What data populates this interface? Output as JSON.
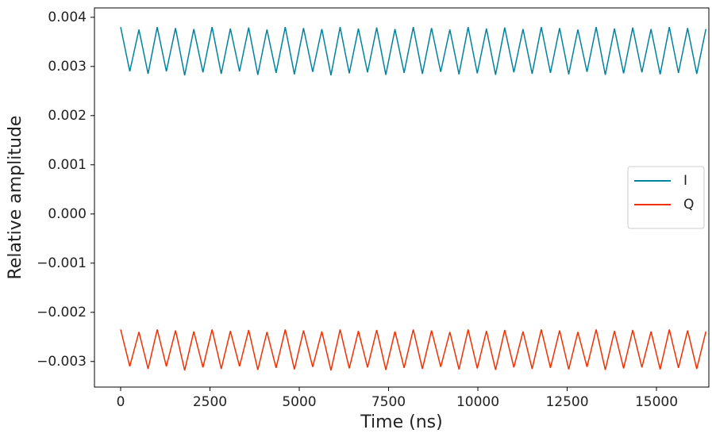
{
  "chart_data": {
    "type": "line",
    "xlabel": "Time (ns)",
    "ylabel": "Relative amplitude",
    "x": [
      0,
      256,
      512,
      768,
      1024,
      1280,
      1536,
      1792,
      2048,
      2304,
      2560,
      2816,
      3072,
      3328,
      3584,
      3840,
      4096,
      4352,
      4608,
      4864,
      5120,
      5376,
      5632,
      5888,
      6144,
      6400,
      6656,
      6912,
      7168,
      7424,
      7680,
      7936,
      8192,
      8448,
      8704,
      8960,
      9216,
      9472,
      9728,
      9984,
      10240,
      10496,
      10752,
      11008,
      11264,
      11520,
      11776,
      12032,
      12288,
      12544,
      12800,
      13056,
      13312,
      13568,
      13824,
      14080,
      14336,
      14592,
      14848,
      15104,
      15360,
      15616,
      15872,
      16128,
      16384
    ],
    "series": [
      {
        "name": "I",
        "color": "#0083a0",
        "values": [
          0.0038,
          0.0029,
          0.00375,
          0.00285,
          0.0038,
          0.0029,
          0.00378,
          0.00282,
          0.00376,
          0.00288,
          0.0038,
          0.00285,
          0.00377,
          0.0029,
          0.00379,
          0.00283,
          0.00375,
          0.00287,
          0.0038,
          0.00284,
          0.00378,
          0.00289,
          0.00376,
          0.00282,
          0.0038,
          0.00286,
          0.00377,
          0.00288,
          0.00379,
          0.00283,
          0.00376,
          0.00287,
          0.0038,
          0.00285,
          0.00378,
          0.00289,
          0.00375,
          0.00284,
          0.0038,
          0.00286,
          0.00377,
          0.00283,
          0.00379,
          0.00288,
          0.00376,
          0.00285,
          0.0038,
          0.00287,
          0.00378,
          0.00284,
          0.00375,
          0.00289,
          0.0038,
          0.00283,
          0.00377,
          0.00286,
          0.00379,
          0.00288,
          0.00376,
          0.00284,
          0.0038,
          0.00287,
          0.00378,
          0.00285,
          0.00376
        ]
      },
      {
        "name": "Q",
        "color": "#f23000",
        "values": [
          -0.00235,
          -0.0031,
          -0.0024,
          -0.00315,
          -0.00235,
          -0.0031,
          -0.00237,
          -0.00318,
          -0.00239,
          -0.00312,
          -0.00235,
          -0.00315,
          -0.00238,
          -0.0031,
          -0.00236,
          -0.00317,
          -0.0024,
          -0.00313,
          -0.00235,
          -0.00316,
          -0.00237,
          -0.00311,
          -0.00239,
          -0.00318,
          -0.00235,
          -0.00314,
          -0.00238,
          -0.00312,
          -0.00236,
          -0.00317,
          -0.00239,
          -0.00313,
          -0.00235,
          -0.00315,
          -0.00237,
          -0.00311,
          -0.0024,
          -0.00316,
          -0.00235,
          -0.00314,
          -0.00238,
          -0.00317,
          -0.00236,
          -0.00312,
          -0.00239,
          -0.00315,
          -0.00235,
          -0.00313,
          -0.00237,
          -0.00316,
          -0.0024,
          -0.00311,
          -0.00235,
          -0.00317,
          -0.00238,
          -0.00314,
          -0.00236,
          -0.00312,
          -0.00239,
          -0.00316,
          -0.00235,
          -0.00313,
          -0.00237,
          -0.00315,
          -0.00239
        ]
      }
    ],
    "xlim": [
      -733,
      16467
    ],
    "xticks": [
      0,
      2500,
      5000,
      7500,
      10000,
      12500,
      15000
    ],
    "ylim": [
      -0.00352,
      0.00419
    ],
    "yticks": [
      {
        "value": -0.003,
        "label": "−0.003"
      },
      {
        "value": -0.002,
        "label": "−0.002"
      },
      {
        "value": -0.001,
        "label": "−0.001"
      },
      {
        "value": 0,
        "label": "0.000"
      },
      0.001,
      0.002,
      0.003,
      0.004
    ],
    "grid": false,
    "legend": "center right"
  }
}
